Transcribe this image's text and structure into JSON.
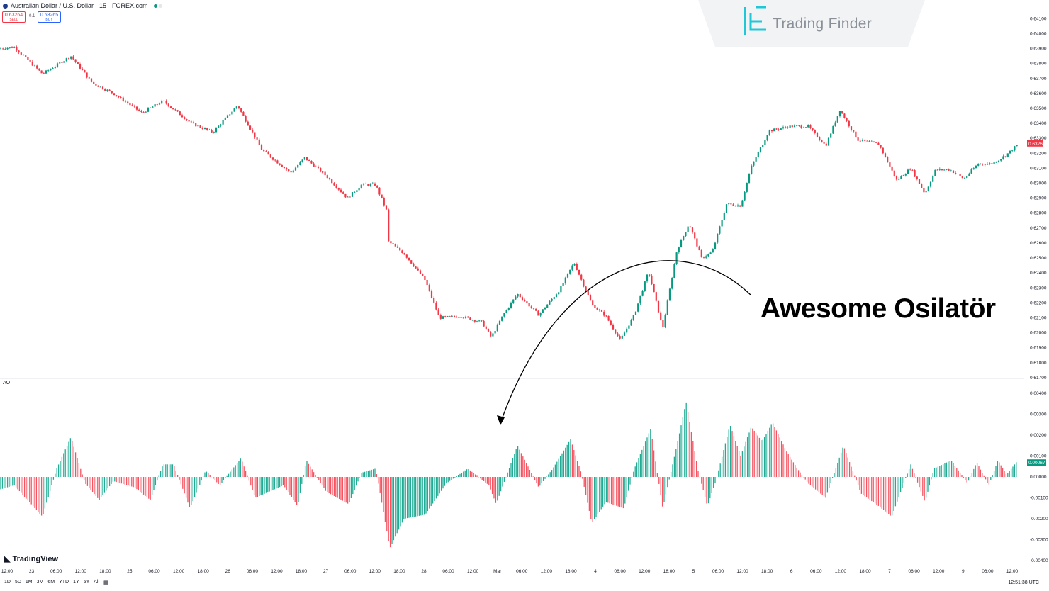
{
  "header": {
    "symbol_title": "Australian Dollar / U.S. Dollar · 15 · FOREX.com",
    "sell_price": "0.63264",
    "sell_label": "SELL",
    "lot": "0.1",
    "buy_price": "0.63265",
    "buy_label": "BUY"
  },
  "watermark": {
    "brand": "Trading Finder",
    "icon": "trading-finder-logo-icon"
  },
  "annotation": {
    "text": "Awesome Osilatör"
  },
  "indicator_label": "AO",
  "footer": {
    "brand": "TradingView",
    "timeframes": [
      "1D",
      "5D",
      "1M",
      "3M",
      "6M",
      "YTD",
      "1Y",
      "5Y",
      "All"
    ],
    "clock": "12:51:38 UTC"
  },
  "colors": {
    "up": "#089981",
    "down": "#f23645",
    "ao_up": "#22ab94",
    "ao_down": "#f7525f",
    "price_tag": "#f23645",
    "ao_tag": "#089981"
  },
  "chart_data": [
    {
      "type": "candlestick",
      "title": "Australian Dollar / U.S. Dollar · 15 · FOREX.com",
      "x_ticks": [
        "12:00",
        "23",
        "06:00",
        "12:00",
        "18:00",
        "25",
        "06:00",
        "12:00",
        "18:00",
        "26",
        "06:00",
        "12:00",
        "18:00",
        "27",
        "06:00",
        "12:00",
        "18:00",
        "28",
        "06:00",
        "12:00",
        "Mar",
        "06:00",
        "12:00",
        "18:00",
        "4",
        "06:00",
        "12:00",
        "18:00",
        "5",
        "06:00",
        "12:00",
        "18:00",
        "6",
        "06:00",
        "12:00",
        "18:00",
        "7",
        "06:00",
        "12:00",
        "9",
        "06:00",
        "12:00"
      ],
      "y_ticks": [
        "0.64100",
        "0.64000",
        "0.63900",
        "0.63800",
        "0.63700",
        "0.63600",
        "0.63500",
        "0.63400",
        "0.63300",
        "0.63200",
        "0.63100",
        "0.63000",
        "0.62900",
        "0.62800",
        "0.62700",
        "0.62600",
        "0.62500",
        "0.62400",
        "0.62300",
        "0.62200",
        "0.62100",
        "0.62000",
        "0.61900",
        "0.61800",
        "0.61700"
      ],
      "ylim": [
        0.6169,
        0.6413
      ],
      "last_price_label": "0.63264",
      "close_path": [
        [
          0,
          0.639
        ],
        [
          20,
          0.6391
        ],
        [
          60,
          0.6373
        ],
        [
          100,
          0.6385
        ],
        [
          130,
          0.6367
        ],
        [
          160,
          0.636
        ],
        [
          200,
          0.6347
        ],
        [
          230,
          0.6355
        ],
        [
          270,
          0.634
        ],
        [
          300,
          0.6334
        ],
        [
          335,
          0.6352
        ],
        [
          370,
          0.6322
        ],
        [
          410,
          0.6307
        ],
        [
          430,
          0.6317
        ],
        [
          460,
          0.6305
        ],
        [
          490,
          0.629
        ],
        [
          510,
          0.6299
        ],
        [
          530,
          0.6299
        ],
        [
          545,
          0.6282
        ],
        [
          548,
          0.6261
        ],
        [
          570,
          0.6253
        ],
        [
          600,
          0.6235
        ],
        [
          620,
          0.621
        ],
        [
          650,
          0.6211
        ],
        [
          680,
          0.6207
        ],
        [
          693,
          0.6197
        ],
        [
          710,
          0.6212
        ],
        [
          730,
          0.6226
        ],
        [
          760,
          0.6212
        ],
        [
          790,
          0.6229
        ],
        [
          810,
          0.6247
        ],
        [
          825,
          0.623
        ],
        [
          835,
          0.6219
        ],
        [
          855,
          0.6211
        ],
        [
          875,
          0.6195
        ],
        [
          895,
          0.6212
        ],
        [
          915,
          0.6241
        ],
        [
          935,
          0.6203
        ],
        [
          955,
          0.6255
        ],
        [
          972,
          0.6273
        ],
        [
          990,
          0.625
        ],
        [
          1005,
          0.6254
        ],
        [
          1025,
          0.6286
        ],
        [
          1045,
          0.6285
        ],
        [
          1060,
          0.6311
        ],
        [
          1085,
          0.6335
        ],
        [
          1115,
          0.6338
        ],
        [
          1140,
          0.6338
        ],
        [
          1165,
          0.6325
        ],
        [
          1185,
          0.6349
        ],
        [
          1210,
          0.6329
        ],
        [
          1240,
          0.6326
        ],
        [
          1265,
          0.6302
        ],
        [
          1285,
          0.631
        ],
        [
          1305,
          0.6293
        ],
        [
          1320,
          0.6309
        ],
        [
          1340,
          0.6309
        ],
        [
          1360,
          0.6303
        ],
        [
          1380,
          0.6313
        ],
        [
          1400,
          0.6313
        ],
        [
          1420,
          0.6319
        ],
        [
          1436,
          0.6326
        ]
      ]
    },
    {
      "type": "histogram",
      "title": "AO",
      "y_ticks": [
        "0.00400",
        "0.00300",
        "0.00200",
        "0.00100",
        "0.00000",
        "-0.00100",
        "-0.00200",
        "-0.00300",
        "-0.00400"
      ],
      "ylim": [
        -0.0042,
        0.0042
      ],
      "last_value_label": "0.00067",
      "value_path": [
        [
          0,
          -0.0006
        ],
        [
          20,
          -0.0004
        ],
        [
          60,
          -0.0019
        ],
        [
          80,
          0.0004
        ],
        [
          100,
          0.0019
        ],
        [
          120,
          -0.0003
        ],
        [
          140,
          -0.0011
        ],
        [
          160,
          -0.0002
        ],
        [
          190,
          -0.0005
        ],
        [
          212,
          -0.0011
        ],
        [
          230,
          0.0006
        ],
        [
          245,
          0.0006
        ],
        [
          268,
          -0.0015
        ],
        [
          290,
          0.0003
        ],
        [
          310,
          -0.0004
        ],
        [
          340,
          0.0009
        ],
        [
          360,
          -0.001
        ],
        [
          400,
          -0.0004
        ],
        [
          420,
          -0.0014
        ],
        [
          432,
          0.0008
        ],
        [
          460,
          -0.0007
        ],
        [
          492,
          -0.0013
        ],
        [
          510,
          0.0002
        ],
        [
          530,
          0.0004
        ],
        [
          550,
          -0.0034
        ],
        [
          570,
          -0.002
        ],
        [
          600,
          -0.0018
        ],
        [
          630,
          -0.0003
        ],
        [
          660,
          0.0004
        ],
        [
          690,
          -0.0004
        ],
        [
          700,
          -0.0013
        ],
        [
          730,
          0.0015
        ],
        [
          760,
          -0.0005
        ],
        [
          780,
          0.0004
        ],
        [
          805,
          0.0018
        ],
        [
          820,
          0.0002
        ],
        [
          835,
          -0.0022
        ],
        [
          855,
          -0.0012
        ],
        [
          880,
          -0.0015
        ],
        [
          895,
          0.0004
        ],
        [
          918,
          0.0023
        ],
        [
          935,
          -0.0015
        ],
        [
          955,
          0.0015
        ],
        [
          968,
          0.0036
        ],
        [
          985,
          0.0003
        ],
        [
          998,
          -0.0014
        ],
        [
          1010,
          -0.0002
        ],
        [
          1030,
          0.0025
        ],
        [
          1045,
          0.001
        ],
        [
          1060,
          0.0024
        ],
        [
          1075,
          0.0017
        ],
        [
          1090,
          0.0026
        ],
        [
          1110,
          0.0012
        ],
        [
          1125,
          0.0004
        ],
        [
          1140,
          -0.0003
        ],
        [
          1165,
          -0.001
        ],
        [
          1190,
          0.0015
        ],
        [
          1215,
          -0.0008
        ],
        [
          1240,
          -0.0014
        ],
        [
          1258,
          -0.0019
        ],
        [
          1285,
          0.0006
        ],
        [
          1305,
          -0.0012
        ],
        [
          1318,
          0.0004
        ],
        [
          1342,
          0.0008
        ],
        [
          1365,
          -0.0003
        ],
        [
          1378,
          0.0007
        ],
        [
          1395,
          -0.0004
        ],
        [
          1408,
          0.0008
        ],
        [
          1420,
          0.0001
        ],
        [
          1436,
          0.0008
        ]
      ]
    }
  ]
}
